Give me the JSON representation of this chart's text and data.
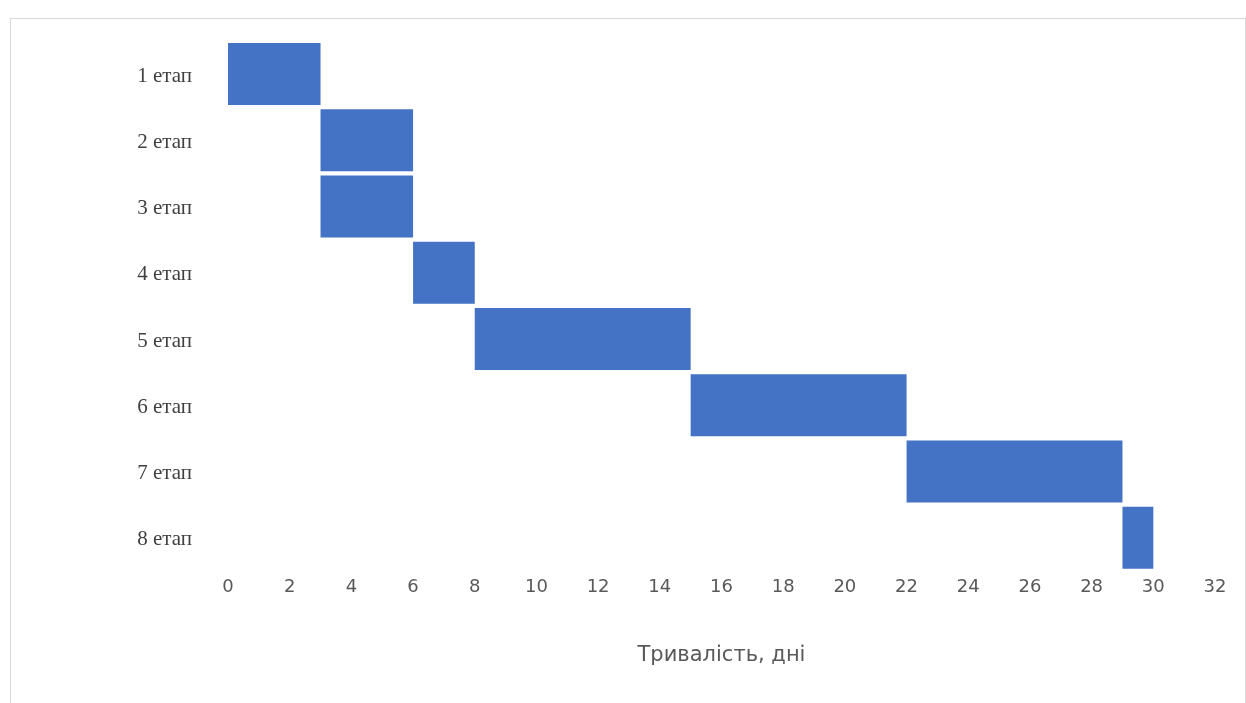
{
  "chart_data": {
    "type": "bar",
    "orientation": "horizontal",
    "xlabel": "Тривалість, дні",
    "categories": [
      "1 етап",
      "2 етап",
      "3 етап",
      "4 етап",
      "5 етап",
      "6 етап",
      "7 етап",
      "8 етап"
    ],
    "base": [
      0,
      3,
      3,
      6,
      8,
      15,
      22,
      29
    ],
    "values": [
      3,
      3,
      3,
      2,
      7,
      7,
      7,
      1
    ],
    "color": "#4472c4",
    "xlim": [
      0,
      32
    ],
    "xticks": [
      0,
      2,
      4,
      6,
      8,
      10,
      12,
      14,
      16,
      18,
      20,
      22,
      24,
      26,
      28,
      30,
      32
    ],
    "grid": false,
    "legend": false
  }
}
